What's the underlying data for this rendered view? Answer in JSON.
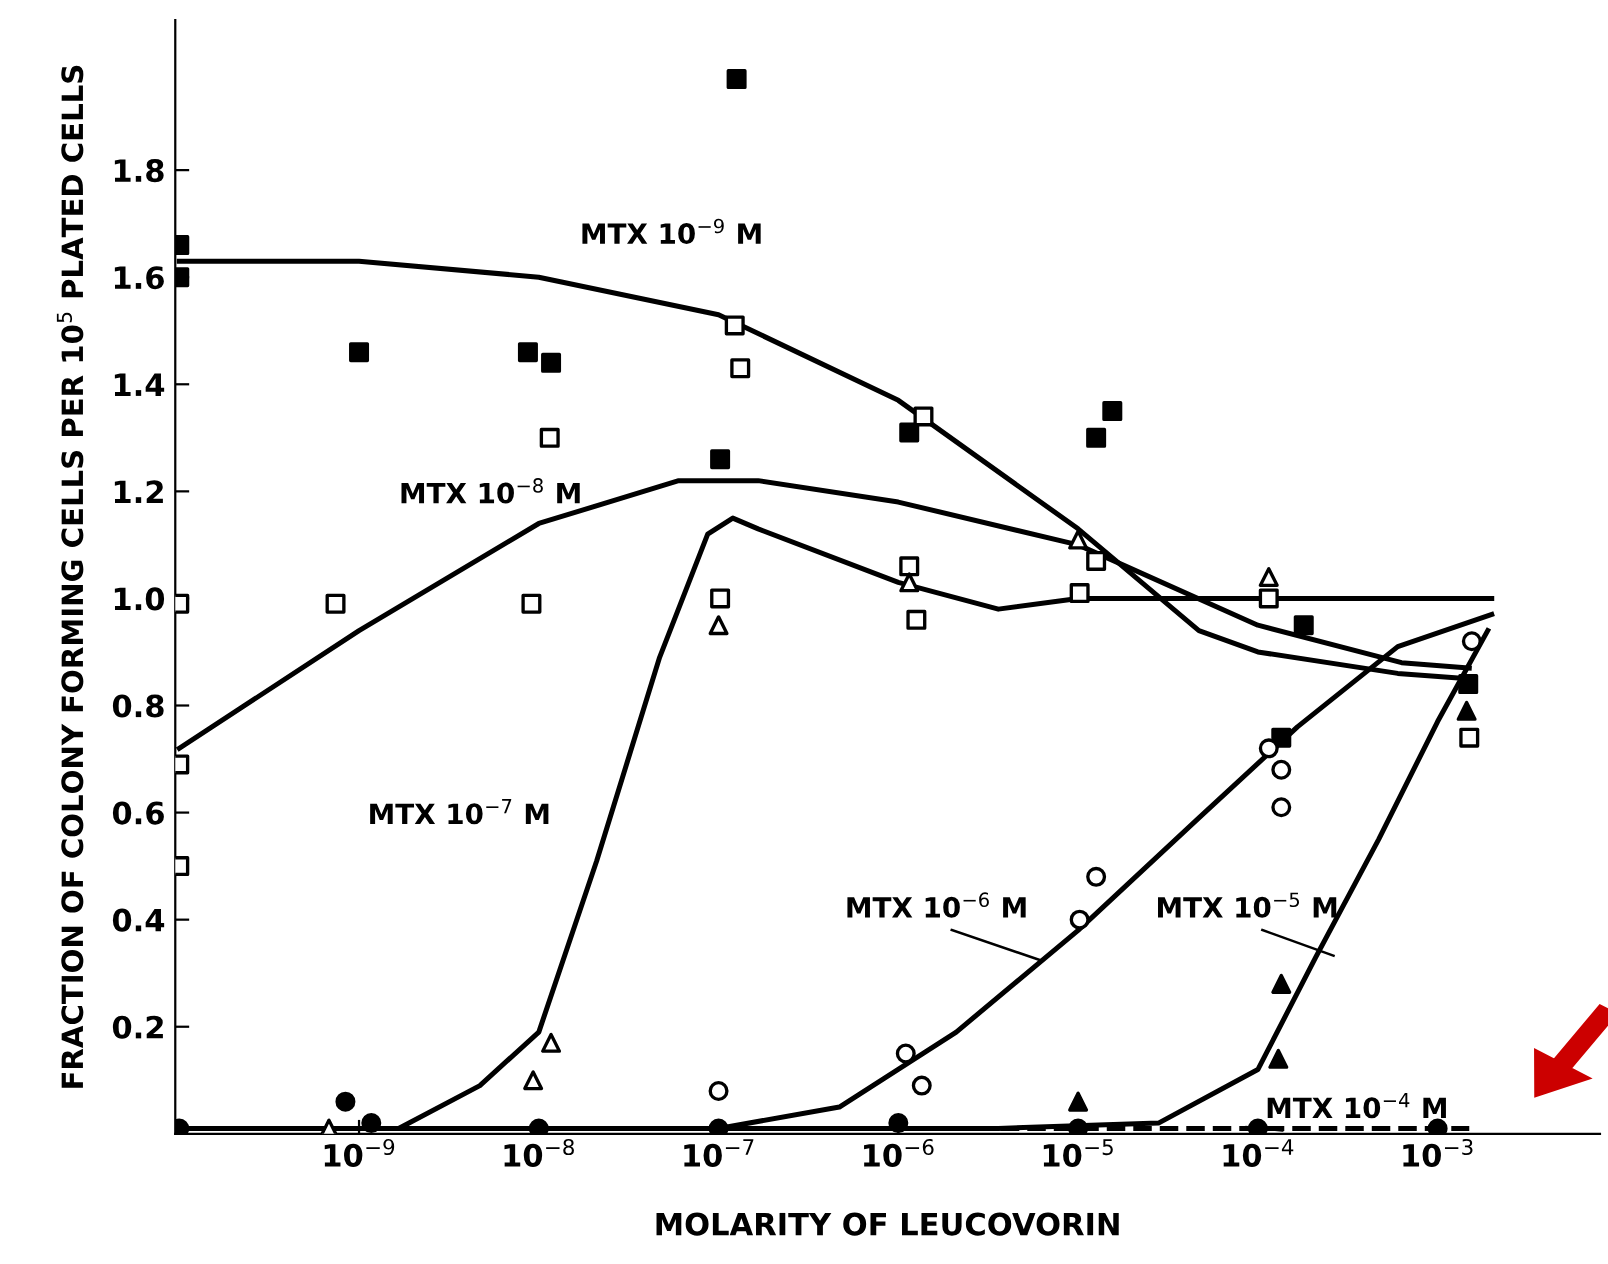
{
  "chart_data": {
    "type": "scatter",
    "xlabel": "MOLARITY OF LEUCOVORIN",
    "ylabel": "FRACTION OF COLONY FORMING CELLS PER 10$^{5}$ PLATED CELLS",
    "log": "x",
    "grid": false,
    "xlim": [
      9.5e-11,
      0.008
    ],
    "xticks": [
      {
        "value": 1e-09,
        "label": "10$^{−9}$"
      },
      {
        "value": 1e-08,
        "label": "10$^{−8}$"
      },
      {
        "value": 1e-07,
        "label": "10$^{−7}$"
      },
      {
        "value": 1e-06,
        "label": "10$^{−6}$"
      },
      {
        "value": 1e-05,
        "label": "10$^{−5}$"
      },
      {
        "value": 0.0001,
        "label": "10$^{−4}$"
      },
      {
        "value": 0.001,
        "label": "10$^{−3}$"
      }
    ],
    "ylim": [
      0,
      2.08
    ],
    "yticks": [
      0.2,
      0.4,
      0.6,
      0.8,
      {
        "value": 1.0,
        "label": "1.0"
      },
      1.2,
      1.4,
      1.6,
      1.8
    ],
    "series": [
      {
        "marker": "square",
        "color": "#000000",
        "x": [
          1e-10,
          1e-10,
          1e-09,
          8.7e-09,
          1.17e-08,
          1.26e-07,
          1.02e-07,
          1.15e-06,
          1.26e-05,
          1.55e-05,
          0.00018,
          0.000135,
          0.00148
        ],
        "values": [
          1.66,
          1.6,
          1.46,
          1.46,
          1.44,
          1.97,
          1.26,
          1.31,
          1.3,
          1.35,
          0.95,
          0.74,
          0.84
        ]
      },
      {
        "marker": "square",
        "color": "#ffffff",
        "x": [
          1e-10,
          1e-10,
          1e-10,
          7.4e-10,
          9.1e-09,
          1.15e-08,
          1.23e-07,
          1.32e-07,
          1.02e-07,
          1.38e-06,
          1.15e-06,
          1.26e-06,
          1.02e-05,
          1.26e-05,
          0.000115,
          0.0015
        ],
        "values": [
          0.99,
          0.69,
          0.5,
          0.99,
          0.99,
          1.3,
          1.51,
          1.43,
          1.0,
          1.34,
          1.06,
          0.96,
          1.01,
          1.07,
          1.0,
          0.74
        ]
      },
      {
        "marker": "triangle",
        "color": "#ffffff",
        "x": [
          6.8e-10,
          9.3e-09,
          1.17e-08,
          1e-07,
          1.15e-06,
          1e-05,
          0.000115
        ],
        "values": [
          0.01,
          0.1,
          0.17,
          0.95,
          1.03,
          1.11,
          1.04
        ]
      },
      {
        "marker": "circle",
        "color": "#ffffff",
        "x": [
          1e-07,
          1.1e-06,
          1.35e-06,
          1.02e-05,
          1.26e-05,
          0.000115,
          0.000135,
          0.000135,
          0.00155
        ],
        "values": [
          0.08,
          0.15,
          0.09,
          0.4,
          0.48,
          0.72,
          0.68,
          0.61,
          0.92
        ]
      },
      {
        "marker": "triangle",
        "color": "#000000",
        "x": [
          1e-05,
          0.000135,
          0.00013,
          0.00145
        ],
        "values": [
          0.06,
          0.28,
          0.14,
          0.79
        ]
      },
      {
        "marker": "circle",
        "color": "#000000",
        "x": [
          1e-10,
          8.4e-10,
          1.17e-09,
          1e-08,
          1e-07,
          1e-06,
          1e-05,
          0.0001,
          0.001
        ],
        "values": [
          0.01,
          0.06,
          0.02,
          0.01,
          0.01,
          0.02,
          0.01,
          0.01,
          0.01
        ]
      },
      {
        "type": "line",
        "name": "MTX 10$^{−9}$ M",
        "line_style": "solid",
        "color": "#000000",
        "x": [
          1e-10,
          1e-09,
          1e-08,
          1e-07,
          1e-06,
          1e-05,
          4.7e-05,
          0.0001,
          0.0006,
          0.0015
        ],
        "values": [
          1.63,
          1.63,
          1.6,
          1.53,
          1.37,
          1.13,
          0.94,
          0.9,
          0.86,
          0.85
        ]
      },
      {
        "type": "line",
        "name": "MTX 10$^{−8}$ M",
        "line_style": "solid",
        "color": "#000000",
        "x": [
          1e-10,
          1e-09,
          1e-08,
          6e-08,
          1.66e-07,
          1e-06,
          1e-05,
          0.0001,
          0.00063,
          0.0015
        ],
        "values": [
          0.72,
          0.94,
          1.14,
          1.22,
          1.22,
          1.18,
          1.1,
          0.95,
          0.88,
          0.87
        ]
      },
      {
        "type": "line",
        "name": "MTX 10$^{−7}$ M",
        "line_style": "solid",
        "color": "#000000",
        "x": [
          1e-10,
          1.66e-09,
          4.7e-09,
          1e-08,
          2.1e-08,
          4.7e-08,
          8.7e-08,
          1.2e-07,
          1.66e-07,
          1e-06,
          3.6e-06,
          1e-05,
          4.7e-05,
          0.002
        ],
        "values": [
          0.01,
          0.01,
          0.09,
          0.19,
          0.51,
          0.89,
          1.12,
          1.15,
          1.13,
          1.03,
          0.98,
          1.0,
          1.0,
          1.0
        ]
      },
      {
        "type": "line",
        "name": "MTX 10$^{−6}$ M",
        "line_style": "solid",
        "color": "#000000",
        "x": [
          1e-10,
          1e-07,
          4.7e-07,
          2.1e-06,
          1e-05,
          4.7e-05,
          0.000166,
          0.0006,
          0.002
        ],
        "values": [
          0.01,
          0.01,
          0.05,
          0.19,
          0.38,
          0.59,
          0.76,
          0.91,
          0.97
        ]
      },
      {
        "type": "line",
        "name": "MTX 10$^{−5}$ M",
        "line_style": "solid",
        "color": "#000000",
        "x": [
          1e-10,
          3.6e-06,
          2.8e-05,
          0.0001,
          0.00021,
          0.00047,
          0.001,
          0.0019
        ],
        "values": [
          0.01,
          0.01,
          0.02,
          0.12,
          0.33,
          0.55,
          0.77,
          0.94
        ]
      },
      {
        "type": "line",
        "name": "MTX 10$^{−4}$ M",
        "line_style": "dashed",
        "color": "#000000",
        "x": [
          1e-10,
          0.0015
        ],
        "values": [
          0.01,
          0.01
        ]
      }
    ]
  }
}
